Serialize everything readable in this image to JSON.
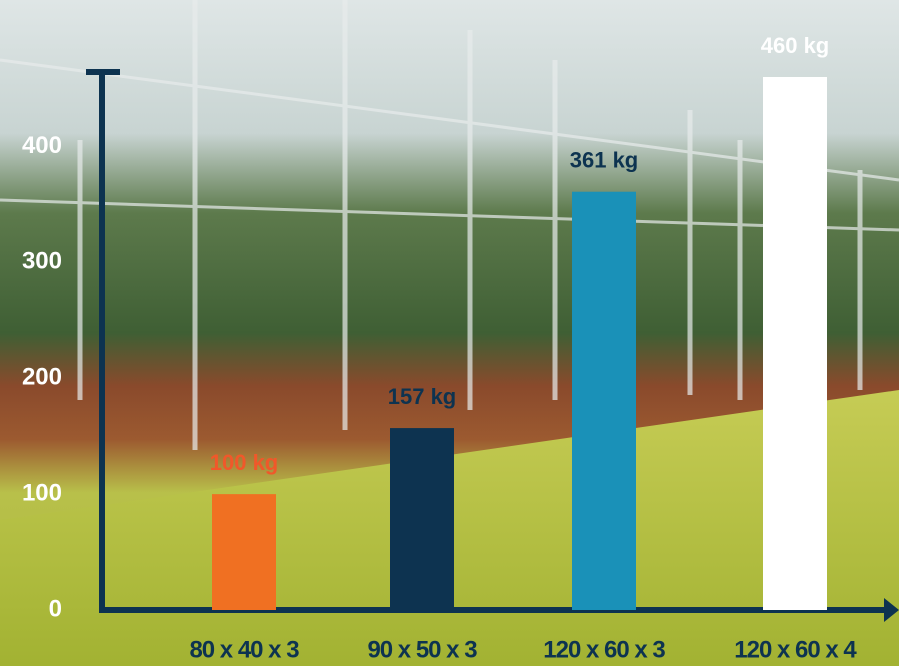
{
  "chart_data": {
    "type": "bar",
    "categories": [
      "80 x 40 x 3",
      "90 x 50 x 3",
      "120 x 60 x 3",
      "120 x 60 x 4"
    ],
    "values": [
      100,
      157,
      361,
      460
    ],
    "value_labels": [
      "100 kg",
      "157 kg",
      "361 kg",
      "460 kg"
    ],
    "colors": [
      "#f07022",
      "#0d3350",
      "#1a91b8",
      "#ffffff"
    ],
    "label_colors": [
      "#f0582a",
      "#0d3350",
      "#0d3350",
      "#ffffff"
    ],
    "ylim": [
      0,
      460
    ],
    "yticks": [
      0,
      100,
      200,
      300,
      400
    ],
    "grid": false
  }
}
